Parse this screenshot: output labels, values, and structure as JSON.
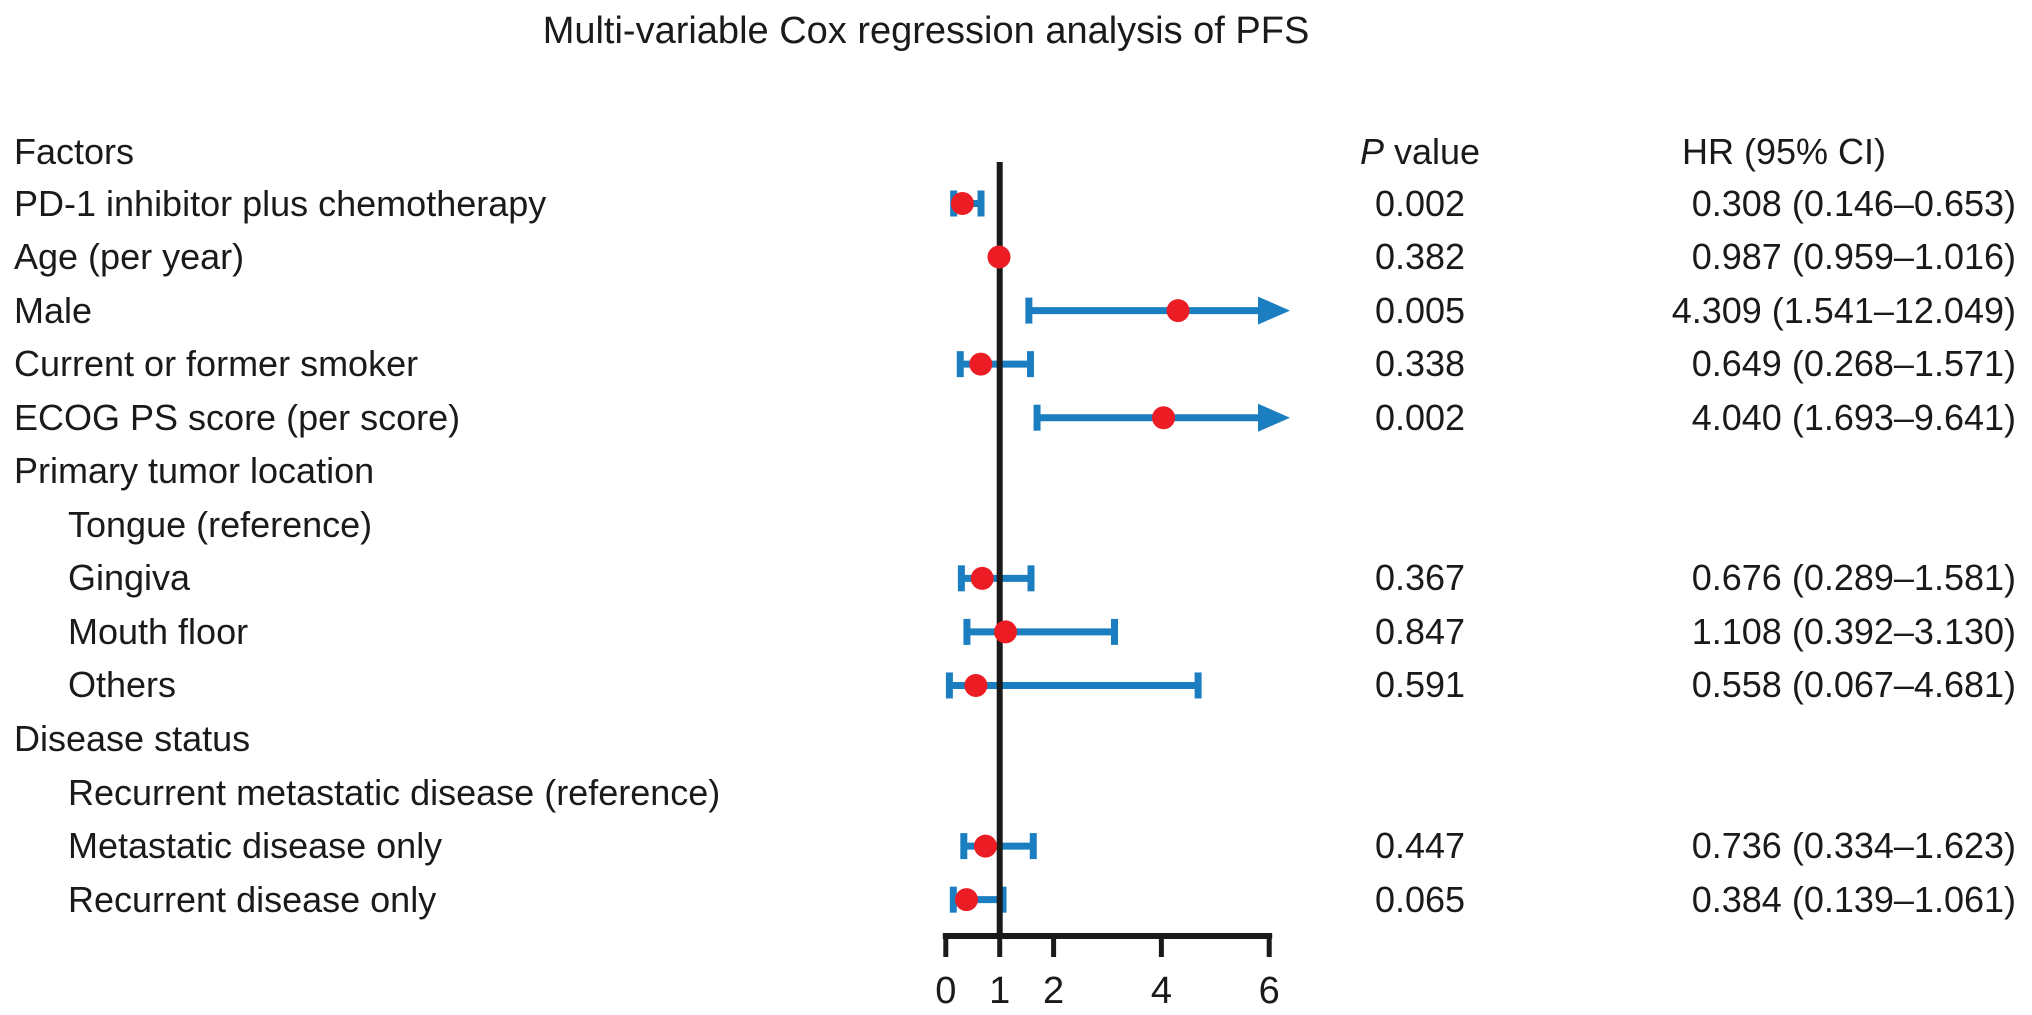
{
  "chart_data": {
    "type": "forest",
    "title": "Multi-variable Cox regression analysis of PFS",
    "columns": {
      "factor": "Factors",
      "p_italic": "P",
      "p_rest": " value",
      "hr": "HR (95% CI)"
    },
    "axis": {
      "ticks": [
        0,
        1,
        2,
        4,
        6
      ],
      "min": 0,
      "max": 6,
      "ref_line": 1,
      "scale": "linear"
    },
    "rows": [
      {
        "label": "PD-1 inhibitor plus chemotherapy",
        "indent": 0,
        "p": "0.002",
        "hr": "0.308 (0.146–0.653)",
        "est": 0.308,
        "lo": 0.146,
        "hi": 0.653
      },
      {
        "label": "Age (per year)",
        "indent": 0,
        "p": "0.382",
        "hr": "0.987 (0.959–1.016)",
        "est": 0.987,
        "lo": 0.959,
        "hi": 1.016,
        "narrow": true
      },
      {
        "label": "Male",
        "indent": 0,
        "p": "0.005",
        "hr": "4.309 (1.541–12.049)",
        "est": 4.309,
        "lo": 1.541,
        "hi": 12.049,
        "arrow": true
      },
      {
        "label": "Current or former smoker",
        "indent": 0,
        "p": "0.338",
        "hr": "0.649 (0.268–1.571)",
        "est": 0.649,
        "lo": 0.268,
        "hi": 1.571
      },
      {
        "label": "ECOG PS score (per score)",
        "indent": 0,
        "p": "0.002",
        "hr": "4.040 (1.693–9.641)",
        "est": 4.04,
        "lo": 1.693,
        "hi": 9.641,
        "arrow": true
      },
      {
        "label": "Primary tumor location",
        "indent": 0,
        "group": true
      },
      {
        "label": "Tongue (reference)",
        "indent": 1
      },
      {
        "label": "Gingiva",
        "indent": 1,
        "p": "0.367",
        "hr": "0.676 (0.289–1.581)",
        "est": 0.676,
        "lo": 0.289,
        "hi": 1.581
      },
      {
        "label": "Mouth floor",
        "indent": 1,
        "p": "0.847",
        "hr": "1.108 (0.392–3.130)",
        "est": 1.108,
        "lo": 0.392,
        "hi": 3.13
      },
      {
        "label": "Others",
        "indent": 1,
        "p": "0.591",
        "hr": "0.558 (0.067–4.681)",
        "est": 0.558,
        "lo": 0.067,
        "hi": 4.681
      },
      {
        "label": "Disease status",
        "indent": 0,
        "group": true
      },
      {
        "label": "Recurrent metastatic disease (reference)",
        "indent": 1
      },
      {
        "label": "Metastatic disease only",
        "indent": 1,
        "p": "0.447",
        "hr": "0.736 (0.334–1.623)",
        "est": 0.736,
        "lo": 0.334,
        "hi": 1.623
      },
      {
        "label": "Recurrent disease only",
        "indent": 1,
        "p": "0.065",
        "hr": "0.384 (0.139–1.061)",
        "est": 0.384,
        "lo": 0.139,
        "hi": 1.061
      }
    ],
    "colors": {
      "bar": "#1b7ec1",
      "point": "#ec1c24",
      "axis": "#1a1a1a"
    },
    "legend": null
  }
}
